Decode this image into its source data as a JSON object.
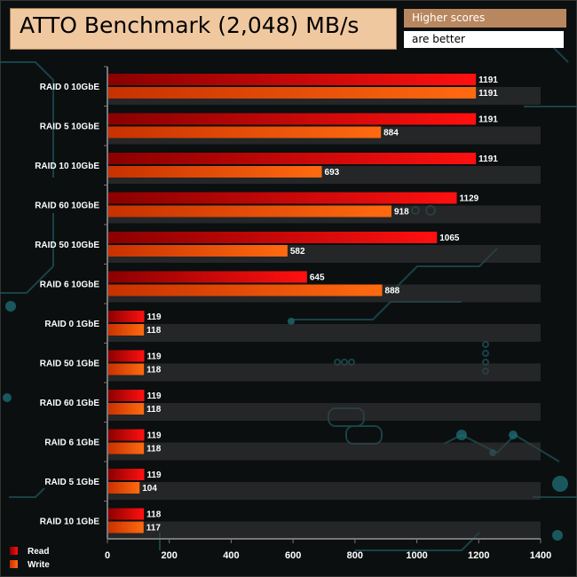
{
  "header": {
    "title": "ATTO Benchmark (2,048) MB/s",
    "note_top": "Higher scores",
    "note_bottom": "are better"
  },
  "chart_data": {
    "type": "bar",
    "orientation": "horizontal",
    "title": "ATTO Benchmark (2,048) MB/s",
    "categories": [
      "RAID 0 10GbE",
      "RAID 5 10GbE",
      "RAID 10 10GbE",
      "RAID 60 10GbE",
      "RAID 50 10GbE",
      "RAID 6 10GbE",
      "RAID 0 1GbE",
      "RAID 50 1GbE",
      "RAID 60 1GbE",
      "RAID 6 1GbE",
      "RAID 5 1GbE",
      "RAID 10 1GbE"
    ],
    "series": [
      {
        "name": "Read",
        "color": "#e01010",
        "values": [
          1191,
          1191,
          1191,
          1129,
          1065,
          645,
          119,
          119,
          119,
          119,
          119,
          118
        ]
      },
      {
        "name": "Write",
        "color": "#f06010",
        "values": [
          1191,
          884,
          693,
          918,
          582,
          888,
          118,
          118,
          118,
          118,
          104,
          117
        ]
      }
    ],
    "xlim": [
      0,
      1400
    ],
    "xticks": [
      0,
      200,
      400,
      600,
      800,
      1000,
      1200,
      1400
    ],
    "grid": false,
    "legend_position": "bottom-left"
  }
}
